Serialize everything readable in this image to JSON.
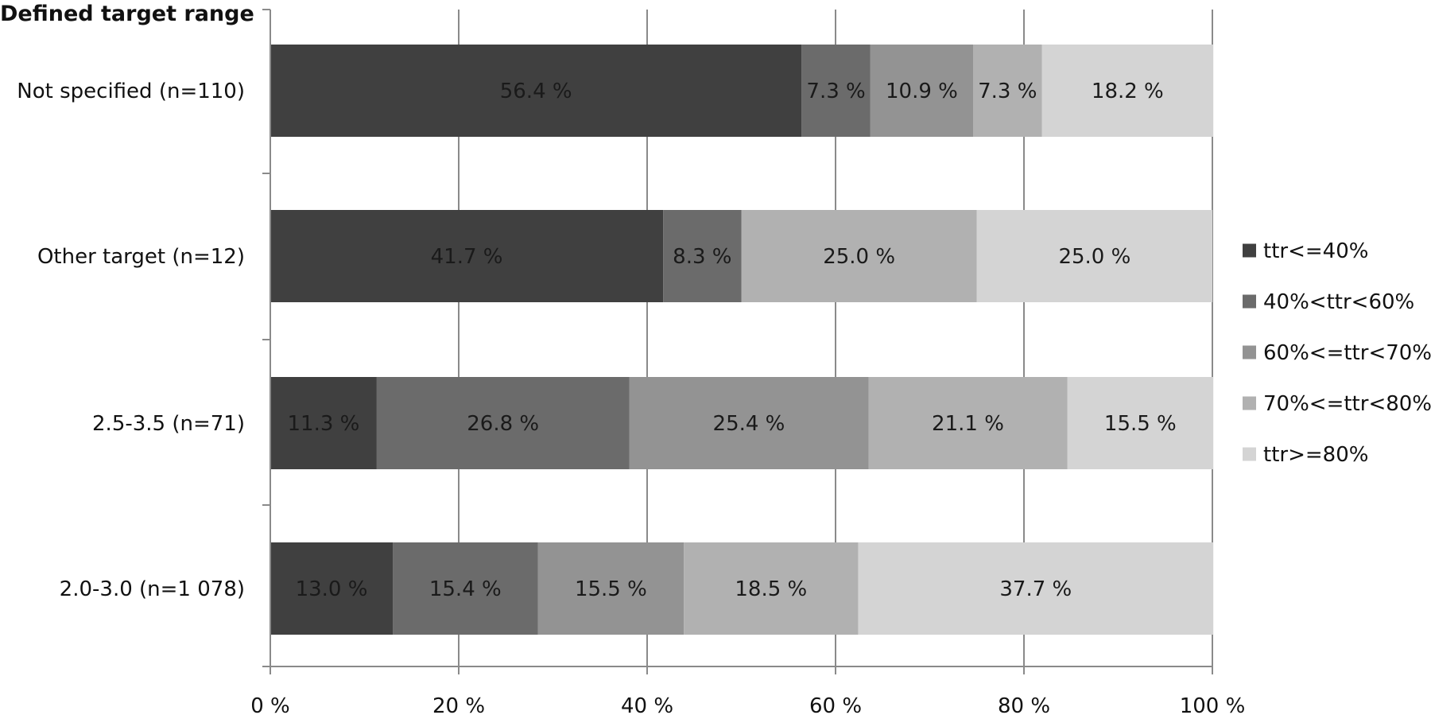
{
  "chart_data": {
    "type": "bar",
    "orientation": "horizontal",
    "stacked": true,
    "title": "Defined target range",
    "xlabel": "",
    "ylabel": "",
    "xlim": [
      0,
      100
    ],
    "x_ticks": [
      0,
      20,
      40,
      60,
      80,
      100
    ],
    "x_tick_labels": [
      "0 %",
      "20 %",
      "40 %",
      "60 %",
      "80 %",
      "100 %"
    ],
    "grid": "vertical",
    "legend_position": "right",
    "categories": [
      "Not specified (n=110)",
      "Other target (n=12)",
      "2.5-3.5 (n=71)",
      "2.0-3.0 (n=1 078)"
    ],
    "series": [
      {
        "name": "ttr<=40%",
        "color": "#404040",
        "values": [
          56.4,
          41.7,
          11.3,
          13.0
        ],
        "labels": [
          "56.4 %",
          "41.7 %",
          "11.3 %",
          "13.0 %"
        ]
      },
      {
        "name": "40%<ttr<60%",
        "color": "#6b6b6b",
        "values": [
          7.3,
          8.3,
          26.8,
          15.4
        ],
        "labels": [
          "7.3 %",
          "8.3 %",
          "26.8 %",
          "15.4 %"
        ]
      },
      {
        "name": "60%<=ttr<70%",
        "color": "#939393",
        "values": [
          10.9,
          0,
          25.4,
          15.5
        ],
        "labels": [
          "10.9 %",
          "",
          "25.4 %",
          "15.5 %"
        ]
      },
      {
        "name": "70%<=ttr<80%",
        "color": "#b1b1b1",
        "values": [
          7.3,
          25.0,
          21.1,
          18.5
        ],
        "labels": [
          "7.3 %",
          "25.0 %",
          "21.1 %",
          "18.5 %"
        ]
      },
      {
        "name": "ttr>=80%",
        "color": "#d4d4d4",
        "values": [
          18.2,
          25.0,
          15.5,
          37.7
        ],
        "labels": [
          "18.2 %",
          "25.0 %",
          "15.5 %",
          "37.7 %"
        ]
      }
    ]
  }
}
